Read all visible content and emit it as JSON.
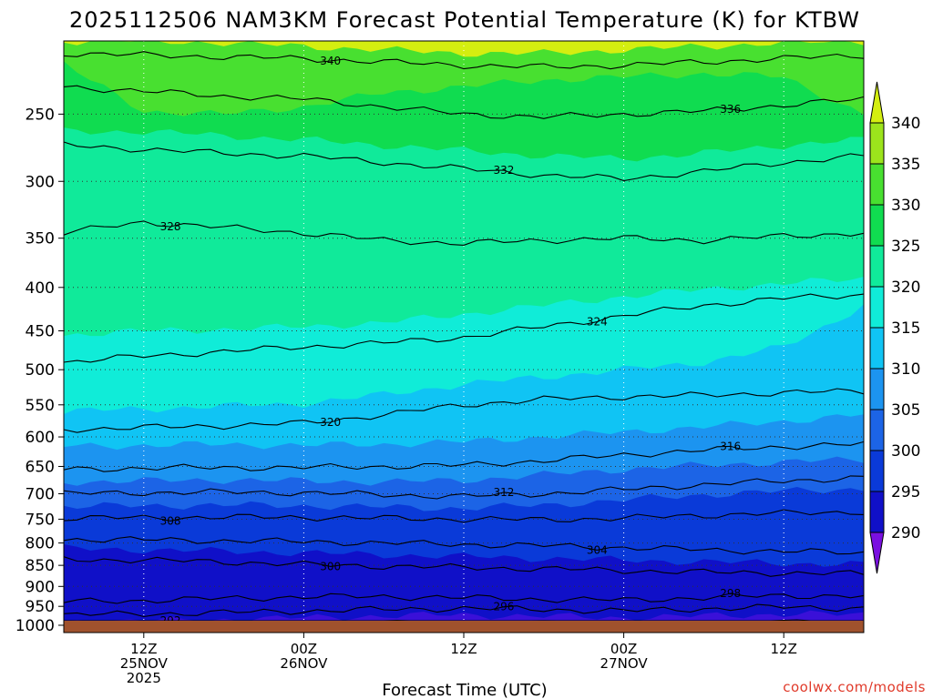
{
  "chart_data": {
    "type": "heatmap",
    "title": "2025112506 NAM3KM Forecast Potential Temperature (K) for KTBW",
    "xlabel": "Forecast Time (UTC)",
    "ylabel": "",
    "y_scale": "log-pressure, inverted",
    "ylim": [
      1020,
      205
    ],
    "y_ticks": [
      1000,
      950,
      900,
      850,
      800,
      750,
      700,
      650,
      600,
      550,
      500,
      450,
      400,
      350,
      300,
      250
    ],
    "x_ticks": [
      {
        "hour": 6,
        "line1": "12Z",
        "line2": "25NOV",
        "line3": "2025"
      },
      {
        "hour": 18,
        "line1": "00Z",
        "line2": "26NOV",
        "line3": ""
      },
      {
        "hour": 30,
        "line1": "12Z",
        "line2": "",
        "line3": ""
      },
      {
        "hour": 42,
        "line1": "00Z",
        "line2": "27NOV",
        "line3": ""
      },
      {
        "hour": 54,
        "line1": "12Z",
        "line2": "",
        "line3": ""
      }
    ],
    "xlim": [
      0,
      60
    ],
    "grid": true,
    "colorbar": {
      "levels": [
        290,
        295,
        300,
        305,
        310,
        315,
        320,
        325,
        330,
        335,
        340
      ],
      "colors": [
        "#7a10e0",
        "#3a10d8",
        "#1010c8",
        "#0a3ad8",
        "#1c64e6",
        "#1c94f0",
        "#10c4f4",
        "#10ecd8",
        "#10ea9a",
        "#10dc50",
        "#48e030",
        "#9ce41c",
        "#d4ee10"
      ],
      "extend": "both"
    },
    "surface_color": "#a0522d",
    "series": [
      {
        "name": "292",
        "values": [
          [
            0,
            1000
          ],
          [
            6,
            1000
          ],
          [
            12,
            999
          ],
          [
            18,
            998
          ],
          [
            24,
            997
          ],
          [
            30,
            996
          ],
          [
            36,
            997
          ],
          [
            42,
            998
          ],
          [
            48,
            995
          ],
          [
            54,
            993
          ],
          [
            60,
            995
          ]
        ]
      },
      {
        "name": "296",
        "values": [
          [
            0,
            972
          ],
          [
            6,
            970
          ],
          [
            12,
            966
          ],
          [
            18,
            962
          ],
          [
            24,
            958
          ],
          [
            30,
            955
          ],
          [
            36,
            958
          ],
          [
            42,
            962
          ],
          [
            48,
            956
          ],
          [
            54,
            952
          ],
          [
            60,
            955
          ]
        ]
      },
      {
        "name": "298",
        "values": [
          [
            0,
            938
          ],
          [
            6,
            935
          ],
          [
            12,
            930
          ],
          [
            18,
            926
          ],
          [
            24,
            925
          ],
          [
            30,
            928
          ],
          [
            36,
            932
          ],
          [
            42,
            934
          ],
          [
            48,
            928
          ],
          [
            54,
            922
          ],
          [
            60,
            925
          ]
        ]
      },
      {
        "name": "300",
        "values": [
          [
            0,
            836
          ],
          [
            6,
            838
          ],
          [
            12,
            842
          ],
          [
            18,
            848
          ],
          [
            24,
            852
          ],
          [
            30,
            855
          ],
          [
            36,
            858
          ],
          [
            42,
            862
          ],
          [
            48,
            866
          ],
          [
            54,
            868
          ],
          [
            60,
            870
          ]
        ]
      },
      {
        "name": "304",
        "values": [
          [
            0,
            792
          ],
          [
            6,
            793
          ],
          [
            12,
            795
          ],
          [
            18,
            797
          ],
          [
            24,
            800
          ],
          [
            30,
            803
          ],
          [
            36,
            806
          ],
          [
            42,
            810
          ],
          [
            48,
            815
          ],
          [
            54,
            818
          ],
          [
            60,
            822
          ]
        ]
      },
      {
        "name": "308",
        "values": [
          [
            0,
            748
          ],
          [
            6,
            747
          ],
          [
            12,
            746
          ],
          [
            18,
            746
          ],
          [
            24,
            748
          ],
          [
            30,
            750
          ],
          [
            36,
            751
          ],
          [
            42,
            748
          ],
          [
            48,
            742
          ],
          [
            54,
            738
          ],
          [
            60,
            735
          ]
        ]
      },
      {
        "name": "312",
        "values": [
          [
            0,
            700
          ],
          [
            6,
            698
          ],
          [
            12,
            697
          ],
          [
            18,
            698
          ],
          [
            24,
            702
          ],
          [
            30,
            705
          ],
          [
            36,
            700
          ],
          [
            42,
            692
          ],
          [
            48,
            683
          ],
          [
            54,
            676
          ],
          [
            60,
            670
          ]
        ]
      },
      {
        "name": "316",
        "values": [
          [
            0,
            655
          ],
          [
            6,
            653
          ],
          [
            12,
            652
          ],
          [
            18,
            652
          ],
          [
            24,
            650
          ],
          [
            30,
            648
          ],
          [
            36,
            640
          ],
          [
            42,
            630
          ],
          [
            48,
            622
          ],
          [
            54,
            616
          ],
          [
            60,
            612
          ]
        ]
      },
      {
        "name": "320",
        "values": [
          [
            0,
            588
          ],
          [
            6,
            585
          ],
          [
            12,
            582
          ],
          [
            18,
            578
          ],
          [
            24,
            565
          ],
          [
            30,
            550
          ],
          [
            36,
            542
          ],
          [
            42,
            538
          ],
          [
            48,
            536
          ],
          [
            54,
            532
          ],
          [
            60,
            530
          ]
        ]
      },
      {
        "name": "324",
        "values": [
          [
            0,
            490
          ],
          [
            6,
            482
          ],
          [
            12,
            476
          ],
          [
            18,
            470
          ],
          [
            24,
            465
          ],
          [
            30,
            458
          ],
          [
            36,
            445
          ],
          [
            42,
            432
          ],
          [
            48,
            420
          ],
          [
            54,
            412
          ],
          [
            60,
            408
          ]
        ]
      },
      {
        "name": "328",
        "values": [
          [
            0,
            345
          ],
          [
            6,
            335
          ],
          [
            12,
            340
          ],
          [
            18,
            345
          ],
          [
            24,
            352
          ],
          [
            30,
            355
          ],
          [
            36,
            352
          ],
          [
            42,
            350
          ],
          [
            48,
            352
          ],
          [
            54,
            348
          ],
          [
            60,
            345
          ]
        ]
      },
      {
        "name": "332",
        "values": [
          [
            0,
            272
          ],
          [
            6,
            275
          ],
          [
            12,
            278
          ],
          [
            18,
            280
          ],
          [
            24,
            285
          ],
          [
            30,
            290
          ],
          [
            36,
            295
          ],
          [
            42,
            298
          ],
          [
            48,
            292
          ],
          [
            54,
            285
          ],
          [
            60,
            280
          ]
        ]
      },
      {
        "name": "336",
        "values": [
          [
            0,
            232
          ],
          [
            6,
            235
          ],
          [
            12,
            238
          ],
          [
            18,
            240
          ],
          [
            24,
            245
          ],
          [
            30,
            250
          ],
          [
            36,
            252
          ],
          [
            42,
            250
          ],
          [
            48,
            248
          ],
          [
            54,
            244
          ],
          [
            60,
            240
          ]
        ]
      },
      {
        "name": "340",
        "values": [
          [
            0,
            212
          ],
          [
            6,
            213
          ],
          [
            12,
            214
          ],
          [
            18,
            215
          ],
          [
            24,
            217
          ],
          [
            30,
            219
          ],
          [
            36,
            220
          ],
          [
            42,
            219
          ],
          [
            48,
            217
          ],
          [
            54,
            215
          ],
          [
            60,
            213
          ]
        ]
      }
    ],
    "filled_boundaries": [
      {
        "level": 325,
        "values": [
          [
            0,
            455
          ],
          [
            6,
            450
          ],
          [
            12,
            448
          ],
          [
            18,
            445
          ],
          [
            24,
            440
          ],
          [
            30,
            430
          ],
          [
            36,
            420
          ],
          [
            42,
            410
          ],
          [
            48,
            402
          ],
          [
            54,
            396
          ],
          [
            60,
            390
          ]
        ]
      },
      {
        "level": 320,
        "values": [
          [
            0,
            560
          ],
          [
            6,
            556
          ],
          [
            12,
            552
          ],
          [
            18,
            548
          ],
          [
            24,
            535
          ],
          [
            30,
            520
          ],
          [
            36,
            510
          ],
          [
            42,
            500
          ],
          [
            48,
            490
          ],
          [
            54,
            470
          ],
          [
            60,
            420
          ]
        ]
      },
      {
        "level": 315,
        "values": [
          [
            0,
            615
          ],
          [
            6,
            614
          ],
          [
            12,
            612
          ],
          [
            18,
            614
          ],
          [
            24,
            612
          ],
          [
            30,
            608
          ],
          [
            36,
            600
          ],
          [
            42,
            592
          ],
          [
            48,
            584
          ],
          [
            54,
            575
          ],
          [
            60,
            565
          ]
        ]
      },
      {
        "level": 310,
        "values": [
          [
            0,
            678
          ],
          [
            6,
            676
          ],
          [
            12,
            674
          ],
          [
            18,
            676
          ],
          [
            24,
            678
          ],
          [
            30,
            675
          ],
          [
            36,
            665
          ],
          [
            42,
            655
          ],
          [
            48,
            648
          ],
          [
            54,
            642
          ],
          [
            60,
            638
          ]
        ]
      },
      {
        "level": 305,
        "values": [
          [
            0,
            725
          ],
          [
            6,
            723
          ],
          [
            12,
            722
          ],
          [
            18,
            723
          ],
          [
            24,
            726
          ],
          [
            30,
            728
          ],
          [
            36,
            722
          ],
          [
            42,
            712
          ],
          [
            48,
            702
          ],
          [
            54,
            695
          ],
          [
            60,
            690
          ]
        ]
      },
      {
        "level": 300,
        "values": [
          [
            0,
            812
          ],
          [
            6,
            815
          ],
          [
            12,
            818
          ],
          [
            18,
            822
          ],
          [
            24,
            826
          ],
          [
            30,
            830
          ],
          [
            36,
            834
          ],
          [
            42,
            838
          ],
          [
            48,
            842
          ],
          [
            54,
            845
          ],
          [
            60,
            848
          ]
        ]
      },
      {
        "level": 295,
        "values": [
          [
            0,
            990
          ],
          [
            6,
            988
          ],
          [
            12,
            985
          ],
          [
            18,
            980
          ],
          [
            24,
            975
          ],
          [
            30,
            972
          ],
          [
            36,
            976
          ],
          [
            42,
            980
          ],
          [
            48,
            975
          ],
          [
            54,
            970
          ],
          [
            60,
            972
          ]
        ]
      },
      {
        "level": 330,
        "values": [
          [
            0,
            262
          ],
          [
            6,
            262
          ],
          [
            12,
            265
          ],
          [
            18,
            268
          ],
          [
            24,
            272
          ],
          [
            30,
            276
          ],
          [
            36,
            280
          ],
          [
            42,
            282
          ],
          [
            48,
            278
          ],
          [
            54,
            272
          ],
          [
            60,
            268
          ]
        ]
      },
      {
        "level": 335,
        "values": [
          [
            0,
            218
          ],
          [
            6,
            248
          ],
          [
            12,
            250
          ],
          [
            18,
            245
          ],
          [
            24,
            236
          ],
          [
            30,
            232
          ],
          [
            36,
            228
          ],
          [
            42,
            226
          ],
          [
            48,
            224
          ],
          [
            54,
            226
          ],
          [
            60,
            250
          ]
        ]
      },
      {
        "level": 340,
        "values": [
          [
            0,
            205
          ],
          [
            6,
            205
          ],
          [
            12,
            206
          ],
          [
            18,
            208
          ],
          [
            24,
            210
          ],
          [
            30,
            212
          ],
          [
            36,
            212
          ],
          [
            42,
            210
          ],
          [
            48,
            208
          ],
          [
            54,
            206
          ],
          [
            60,
            205
          ]
        ]
      }
    ]
  },
  "credit": "coolwx.com/models"
}
